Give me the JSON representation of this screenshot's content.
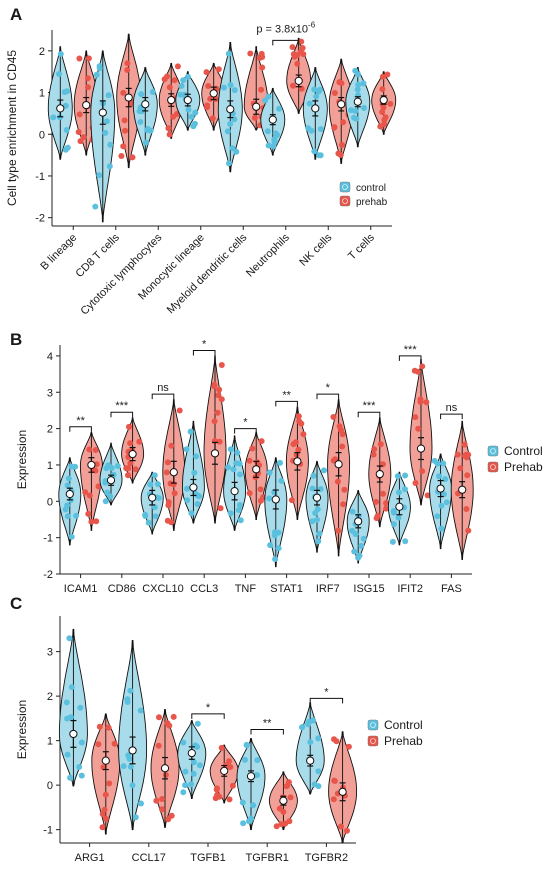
{
  "colors": {
    "control": "#5bc0de",
    "prehab": "#e8554a",
    "violin_control": "#a8dcea",
    "violin_prehab": "#f2a097",
    "axis": "#222222"
  },
  "chart_data": [
    {
      "panel": "A",
      "type": "violin",
      "ylabel": "Cell type enrichment in CD45",
      "ylim": [
        -2.2,
        2.5
      ],
      "yticks": [
        "-2",
        "-1",
        "0",
        "1",
        "2"
      ],
      "ytick_values": [
        -2,
        -1,
        0,
        1,
        2
      ],
      "categories": [
        "B lineage",
        "CD8 T cells",
        "Cytotoxic lymphocytes",
        "Monocytic lineage",
        "Myeloid dendritic cells",
        "Neutrophils",
        "NK cells",
        "T cells"
      ],
      "legend": [
        "control",
        "prehab"
      ],
      "legend_position": "right",
      "rotate_labels": true,
      "series": [
        {
          "name": "control",
          "mean": [
            0.62,
            0.52,
            0.72,
            0.82,
            0.6,
            0.35,
            0.62,
            0.78
          ],
          "ci": [
            0.2,
            0.28,
            0.16,
            0.14,
            0.2,
            0.12,
            0.18,
            0.12
          ],
          "min": [
            -0.6,
            -2.1,
            -0.5,
            0.1,
            -0.9,
            -0.5,
            -0.6,
            -0.3
          ],
          "max": [
            2.1,
            2.0,
            1.6,
            1.5,
            2.2,
            1.1,
            1.6,
            1.6
          ]
        },
        {
          "name": "prehab",
          "mean": [
            0.7,
            0.88,
            0.82,
            0.98,
            0.66,
            1.28,
            0.72,
            0.82
          ],
          "ci": [
            0.18,
            0.22,
            0.15,
            0.15,
            0.18,
            0.14,
            0.16,
            0.1
          ],
          "min": [
            -0.5,
            -0.8,
            -0.1,
            0.1,
            0.1,
            0.5,
            -0.7,
            0.0
          ],
          "max": [
            2.0,
            2.4,
            1.7,
            1.7,
            2.1,
            2.3,
            1.8,
            1.5
          ]
        }
      ],
      "annotations": [
        {
          "group": 5,
          "text": "p = 3.8x10",
          "superscript": "-6",
          "bracket": true
        }
      ]
    },
    {
      "panel": "B",
      "type": "violin",
      "ylabel": "Expression",
      "ylim": [
        -2.0,
        4.3
      ],
      "yticks": [
        "-2",
        "-1",
        "0",
        "1",
        "2",
        "3",
        "4"
      ],
      "ytick_values": [
        -2,
        -1,
        0,
        1,
        2,
        3,
        4
      ],
      "categories": [
        "ICAM1",
        "CD86",
        "CXCL10",
        "CCL3",
        "TNF",
        "STAT1",
        "IRF7",
        "ISG15",
        "IFIT2",
        "FAS"
      ],
      "legend": [
        "Control",
        "Prehab"
      ],
      "legend_position": "right",
      "rotate_labels": false,
      "series": [
        {
          "name": "Control",
          "mean": [
            0.2,
            0.58,
            0.1,
            0.38,
            0.28,
            0.05,
            0.1,
            -0.55,
            -0.15,
            0.35
          ],
          "ci": [
            0.16,
            0.14,
            0.2,
            0.22,
            0.24,
            0.26,
            0.2,
            0.18,
            0.22,
            0.22
          ],
          "min": [
            -1.2,
            -0.1,
            -0.9,
            -0.6,
            -0.8,
            -1.8,
            -1.4,
            -1.7,
            -1.2,
            -1.3
          ],
          "max": [
            1.2,
            1.6,
            0.8,
            2.2,
            1.8,
            1.2,
            1.1,
            0.3,
            0.8,
            1.3
          ]
        },
        {
          "name": "Prehab",
          "mean": [
            1.0,
            1.3,
            0.8,
            1.32,
            0.88,
            1.1,
            1.02,
            0.75,
            1.45,
            0.32
          ],
          "ci": [
            0.2,
            0.18,
            0.3,
            0.3,
            0.22,
            0.24,
            0.32,
            0.22,
            0.3,
            0.22
          ],
          "min": [
            -0.8,
            0.5,
            -0.8,
            -0.6,
            -0.5,
            -0.5,
            -1.5,
            -0.7,
            -0.1,
            -1.6
          ],
          "max": [
            1.9,
            2.3,
            2.8,
            4.0,
            1.9,
            2.6,
            2.8,
            2.3,
            3.9,
            2.2
          ]
        }
      ],
      "annotations": [
        {
          "group": 0,
          "text": "**",
          "y": 2.05
        },
        {
          "group": 1,
          "text": "***",
          "y": 2.45
        },
        {
          "group": 2,
          "text": "ns",
          "y": 2.95
        },
        {
          "group": 3,
          "text": "*",
          "y": 4.15
        },
        {
          "group": 4,
          "text": "*",
          "y": 2.0
        },
        {
          "group": 5,
          "text": "**",
          "y": 2.75
        },
        {
          "group": 6,
          "text": "*",
          "y": 2.95
        },
        {
          "group": 7,
          "text": "***",
          "y": 2.45
        },
        {
          "group": 8,
          "text": "***",
          "y": 4.0
        },
        {
          "group": 9,
          "text": "ns",
          "y": 2.4
        }
      ]
    },
    {
      "panel": "C",
      "type": "violin",
      "ylabel": "Expression",
      "ylim": [
        -1.3,
        3.8
      ],
      "yticks": [
        "-1",
        "0",
        "1",
        "2",
        "3"
      ],
      "ytick_values": [
        -1,
        0,
        1,
        2,
        3
      ],
      "categories": [
        "ARG1",
        "CCL17",
        "TGFB1",
        "TGFBR1",
        "TGFBR2"
      ],
      "legend": [
        "Control",
        "Prehab"
      ],
      "legend_position": "right",
      "rotate_labels": false,
      "series": [
        {
          "name": "Control",
          "mean": [
            1.15,
            0.78,
            0.72,
            0.2,
            0.55
          ],
          "ci": [
            0.3,
            0.3,
            0.14,
            0.12,
            0.12
          ],
          "min": [
            -0.02,
            -1.0,
            -0.3,
            -1.0,
            -0.2
          ],
          "max": [
            3.5,
            3.25,
            1.45,
            1.05,
            1.85
          ]
        },
        {
          "name": "Prehab",
          "mean": [
            0.55,
            0.38,
            0.32,
            -0.35,
            -0.15
          ],
          "ci": [
            0.2,
            0.24,
            0.12,
            0.1,
            0.2
          ],
          "min": [
            -1.1,
            -0.95,
            -0.4,
            -1.0,
            -1.3
          ],
          "max": [
            1.6,
            1.7,
            0.9,
            0.3,
            1.2
          ]
        }
      ],
      "annotations": [
        {
          "group": 2,
          "text": "*",
          "y": 1.6
        },
        {
          "group": 3,
          "text": "**",
          "y": 1.25
        },
        {
          "group": 4,
          "text": "*",
          "y": 1.95
        }
      ]
    }
  ],
  "panel_labels": [
    "A",
    "B",
    "C"
  ]
}
